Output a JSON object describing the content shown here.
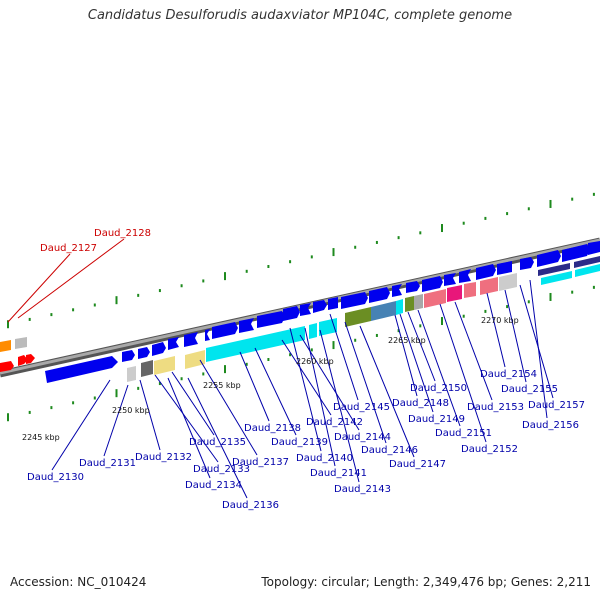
{
  "title": "Candidatus Desulforudis audaxviator MP104C, complete genome",
  "accession": "Accession: NC_010424",
  "summary": "Topology: circular; Length: 2,349,476 bp; Genes: 2,211",
  "scale_labels": [
    "2245 kbp",
    "2250 kbp",
    "2255 kbp",
    "2260 kbp",
    "2265 kbp",
    "2270 kbp"
  ],
  "highlight_genes": [
    "Daud_2127",
    "Daud_2128"
  ],
  "gene_labels": [
    "Daud_2130",
    "Daud_2131",
    "Daud_2132",
    "Daud_2133",
    "Daud_2134",
    "Daud_2135",
    "Daud_2136",
    "Daud_2137",
    "Daud_2138",
    "Daud_2139",
    "Daud_2140",
    "Daud_2141",
    "Daud_2142",
    "Daud_2143",
    "Daud_2144",
    "Daud_2145",
    "Daud_2146",
    "Daud_2147",
    "Daud_2148",
    "Daud_2149",
    "Daud_2150",
    "Daud_2151",
    "Daud_2152",
    "Daud_2153",
    "Daud_2154",
    "Daud_2155",
    "Daud_2156",
    "Daud_2157"
  ],
  "colors": {
    "forward": "#0000ee",
    "backbone": "#7a7a7a",
    "tick": "#1e8a1e",
    "label": "#0000aa",
    "highlight": "#cc0000",
    "rrna": "#00e5ee",
    "trna": "#ef6f7f",
    "pink": "#e8177a",
    "olive": "#6b8e23",
    "steel": "#4682b4",
    "khaki": "#eedc82",
    "grey": "#a8a8a8",
    "navy": "#2b2b88",
    "orange": "#ff8c00",
    "red": "#ff0000"
  }
}
